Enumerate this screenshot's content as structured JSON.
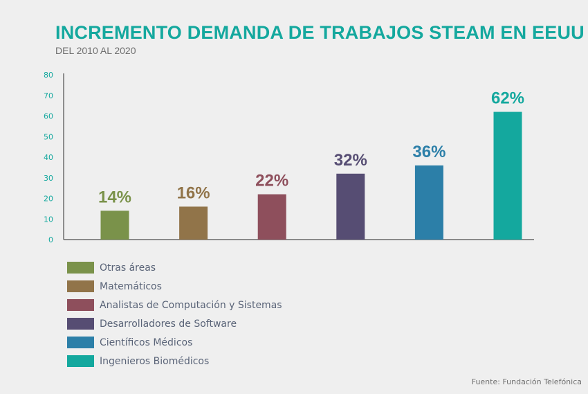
{
  "header": {
    "title": "INCREMENTO DEMANDA DE TRABAJOS STEAM EN EEUU",
    "subtitle": "DEL 2010 AL 2020"
  },
  "colors": {
    "accent": "#14a89e",
    "axis": "#4d4d4d",
    "tick_label": "#14a89e"
  },
  "chart_data": {
    "type": "bar",
    "title": "INCREMENTO DEMANDA DE TRABAJOS STEAM EN EEUU",
    "subtitle": "DEL 2010 AL 2020",
    "categories": [
      "Otras áreas",
      "Matemáticos",
      "Analistas de Computación y Sistemas",
      "Desarrolladores de Software",
      "Científicos Médicos",
      "Ingenieros Biomédicos"
    ],
    "values": [
      14,
      16,
      22,
      32,
      36,
      62
    ],
    "data_labels": [
      "14%",
      "16%",
      "22%",
      "32%",
      "36%",
      "62%"
    ],
    "colors": [
      "#7a924a",
      "#917449",
      "#8e4f5c",
      "#564d73",
      "#2c7fa8",
      "#14a89e"
    ],
    "ylim": [
      0,
      80
    ],
    "yticks": [
      0,
      10,
      20,
      30,
      40,
      50,
      60,
      70,
      80
    ],
    "xlabel": "",
    "ylabel": "",
    "grid": false,
    "legend_position": "bottom-left"
  },
  "legend": {
    "items": [
      {
        "label": "Otras áreas",
        "color": "#7a924a"
      },
      {
        "label": "Matemáticos",
        "color": "#917449"
      },
      {
        "label": "Analistas de Computación y Sistemas",
        "color": "#8e4f5c"
      },
      {
        "label": "Desarrolladores de Software",
        "color": "#564d73"
      },
      {
        "label": "Científicos Médicos",
        "color": "#2c7fa8"
      },
      {
        "label": "Ingenieros Biomédicos",
        "color": "#14a89e"
      }
    ]
  },
  "footer": {
    "source": "Fuente: Fundación Telefónica"
  }
}
